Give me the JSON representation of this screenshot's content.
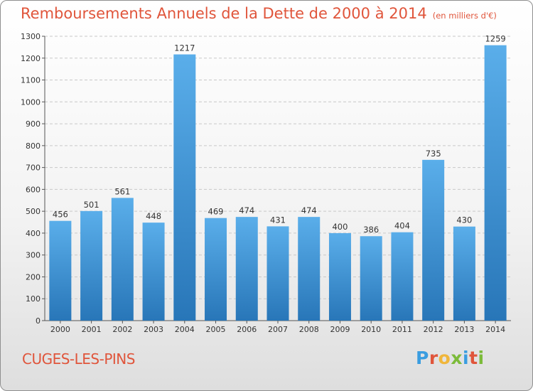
{
  "title": {
    "main": "Remboursements Annuels de la Dette de 2000 à 2014",
    "unit": "(en milliers d'€)"
  },
  "commune": "CUGES-LES-PINS",
  "logo": {
    "letters": [
      "P",
      "r",
      "o",
      "x",
      "i",
      "t",
      "i"
    ],
    "colors": [
      "#3a9de0",
      "#e0553b",
      "#f0b63b",
      "#7cbb3a",
      "#3a9de0",
      "#e0553b",
      "#7cbb3a"
    ]
  },
  "colors": {
    "bar_light": "#5aaeea",
    "bar_dark": "#2876b8",
    "title": "#e0553b"
  },
  "chart_data": {
    "type": "bar",
    "categories": [
      "2000",
      "2001",
      "2002",
      "2003",
      "2004",
      "2005",
      "2006",
      "2007",
      "2008",
      "2009",
      "2010",
      "2011",
      "2012",
      "2013",
      "2014"
    ],
    "values": [
      456,
      501,
      561,
      448,
      1217,
      469,
      474,
      431,
      474,
      400,
      386,
      404,
      735,
      430,
      1259
    ],
    "ylim": [
      0,
      1300
    ],
    "yticks": [
      0,
      100,
      200,
      300,
      400,
      500,
      600,
      700,
      800,
      900,
      1000,
      1100,
      1200,
      1300
    ],
    "grid": true,
    "data_labels": true
  }
}
